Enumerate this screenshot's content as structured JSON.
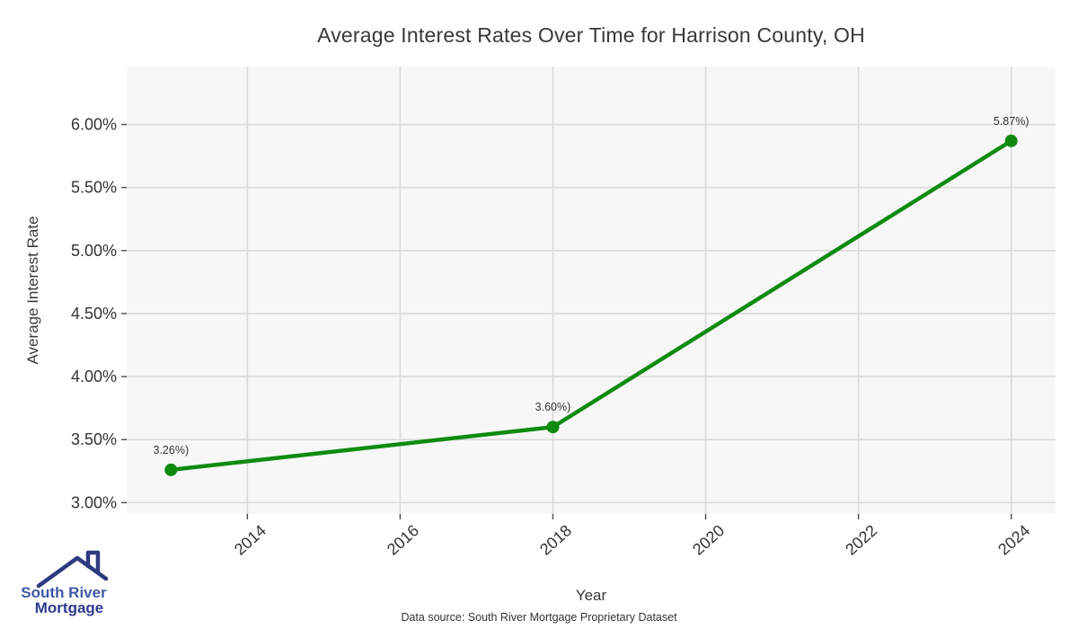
{
  "chart_data": {
    "type": "line",
    "title": "Average Interest Rates Over Time for Harrison County, OH",
    "xlabel": "Year",
    "ylabel": "Average Interest Rate",
    "x": [
      2013,
      2018,
      2024
    ],
    "y": [
      3.26,
      3.6,
      5.87
    ],
    "point_labels": [
      "3.26%)",
      "3.60%)",
      "5.87%)"
    ],
    "x_ticks": [
      2014,
      2016,
      2018,
      2020,
      2022,
      2024
    ],
    "y_ticks": [
      3.0,
      3.5,
      4.0,
      4.5,
      5.0,
      5.5,
      6.0
    ],
    "y_tick_labels": [
      "3.00%",
      "3.50%",
      "4.00%",
      "4.50%",
      "5.00%",
      "5.50%",
      "6.00%"
    ],
    "xlim": [
      2012.42,
      2024.58
    ],
    "ylim": [
      2.91,
      6.46
    ],
    "grid": true,
    "legend": "none",
    "colors": {
      "line": "#0f8b0f",
      "point": "#0f8b0f",
      "panel_bg": "#f7f7f7",
      "grid": "#d9d9d9",
      "tick_text": "#4a4a4a",
      "label_text": "#333333"
    }
  },
  "caption": "Data source: South River Mortgage Proprietary Dataset",
  "logo": {
    "line1": "South River",
    "line2": "Mortgage",
    "colors": {
      "line1": "#4059a7",
      "line2": "#2d3a8e",
      "roof": "#2c3a80"
    }
  }
}
